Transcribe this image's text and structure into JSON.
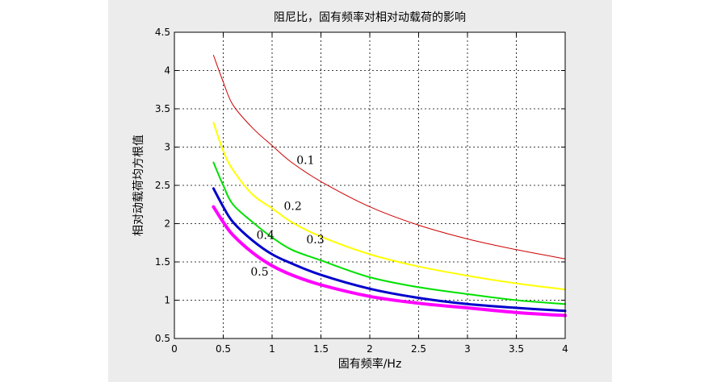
{
  "chart_data": {
    "type": "line",
    "title": "阻尼比，固有频率对相对动载荷的影响",
    "xlabel": "固有频率/Hz",
    "ylabel": "相对动载荷均方根值",
    "xlim": [
      0,
      4
    ],
    "ylim": [
      0.5,
      4.5
    ],
    "x_ticks": [
      0,
      0.5,
      1,
      1.5,
      2,
      2.5,
      3,
      3.5,
      4
    ],
    "y_ticks": [
      0.5,
      1,
      1.5,
      2,
      2.5,
      3,
      3.5,
      4,
      4.5
    ],
    "x_tick_labels": [
      "0",
      "0.5",
      "1",
      "1.5",
      "2",
      "2.5",
      "3",
      "3.5",
      "4"
    ],
    "y_tick_labels": [
      "0.5",
      "1",
      "1.5",
      "2",
      "2.5",
      "3",
      "3.5",
      "4",
      "4.5"
    ],
    "grid": true,
    "grid_style": "dotted",
    "x": [
      0.4,
      0.5,
      0.6,
      0.8,
      1.0,
      1.2,
      1.5,
      2.0,
      2.5,
      3.0,
      3.5,
      4.0
    ],
    "series": [
      {
        "label": "0.1",
        "color": "#cc0000",
        "width": 1,
        "values": [
          4.2,
          3.85,
          3.55,
          3.25,
          3.02,
          2.8,
          2.55,
          2.22,
          1.98,
          1.8,
          1.66,
          1.54
        ],
        "label_at": [
          1.25,
          2.78
        ]
      },
      {
        "label": "0.2",
        "color": "#ffff00",
        "width": 2,
        "values": [
          3.32,
          2.95,
          2.7,
          2.38,
          2.2,
          2.02,
          1.83,
          1.6,
          1.44,
          1.32,
          1.22,
          1.14
        ],
        "label_at": [
          1.12,
          2.18
        ]
      },
      {
        "label": "0.3",
        "color": "#00e000",
        "width": 2,
        "values": [
          2.8,
          2.5,
          2.25,
          2.02,
          1.82,
          1.66,
          1.52,
          1.3,
          1.17,
          1.08,
          1.0,
          0.95
        ],
        "label_at": [
          1.35,
          1.74
        ]
      },
      {
        "label": "0.4",
        "color": "#0000cc",
        "width": 3,
        "values": [
          2.46,
          2.22,
          2.02,
          1.78,
          1.6,
          1.48,
          1.33,
          1.15,
          1.03,
          0.95,
          0.9,
          0.86
        ],
        "label_at": [
          0.84,
          1.8
        ]
      },
      {
        "label": "0.5",
        "color": "#ff00ff",
        "width": 4,
        "values": [
          2.22,
          2.02,
          1.85,
          1.62,
          1.45,
          1.33,
          1.2,
          1.05,
          0.96,
          0.9,
          0.84,
          0.8
        ],
        "label_at": [
          0.78,
          1.32
        ]
      }
    ]
  }
}
